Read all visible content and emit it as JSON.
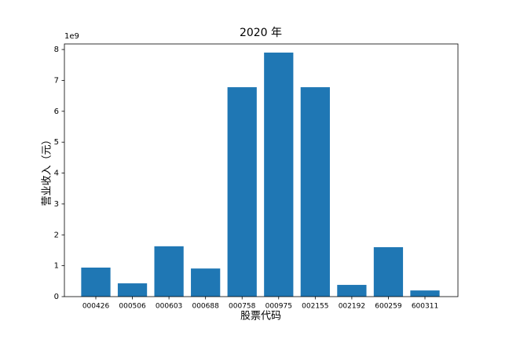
{
  "chart_data": {
    "type": "bar",
    "title": "2020 年",
    "x_label": "股票代码",
    "y_label": "营业收入（元）",
    "y_offset_label": "1e9",
    "categories": [
      "000426",
      "000506",
      "000603",
      "000688",
      "000758",
      "000975",
      "002155",
      "002192",
      "600259",
      "600311"
    ],
    "values": [
      0.94,
      0.43,
      1.63,
      0.91,
      6.78,
      7.9,
      6.78,
      0.38,
      1.6,
      0.2
    ],
    "color": "#1f77b4",
    "ylim": [
      0,
      8.18
    ],
    "yticks": [
      0,
      1,
      2,
      3,
      4,
      5,
      6,
      7,
      8
    ],
    "grid": false
  }
}
